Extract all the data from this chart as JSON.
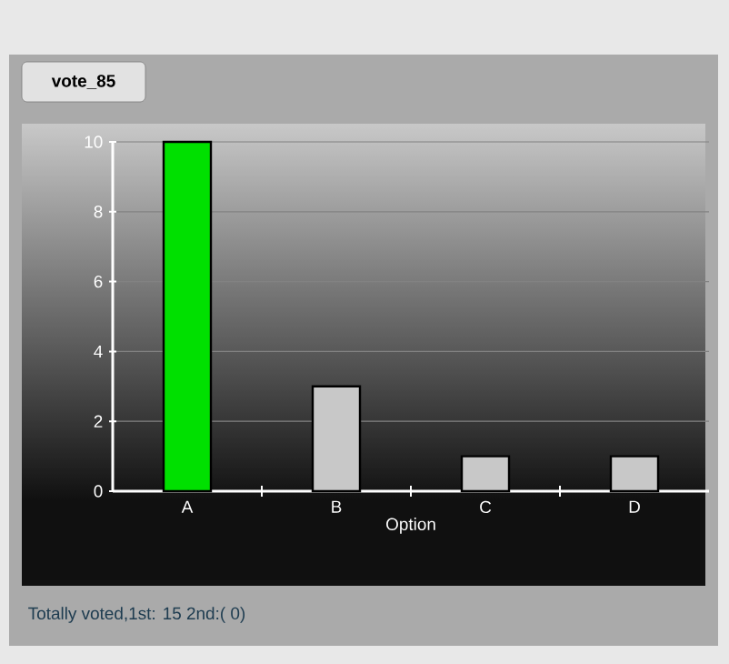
{
  "chart_data": {
    "type": "bar",
    "title": "vote_85",
    "xlabel": "Option",
    "categories": [
      "A",
      "B",
      "C",
      "D"
    ],
    "values": [
      10,
      3,
      1,
      1
    ],
    "colors": [
      "#00e000",
      "#c8c8c8",
      "#c8c8c8",
      "#c8c8c8"
    ],
    "ylim": [
      0,
      10
    ],
    "yticks": [
      0,
      2,
      4,
      6,
      8,
      10
    ],
    "grid": "y",
    "annotations": [
      "Totally voted,1st: 15   2nd:( 0)"
    ]
  }
}
